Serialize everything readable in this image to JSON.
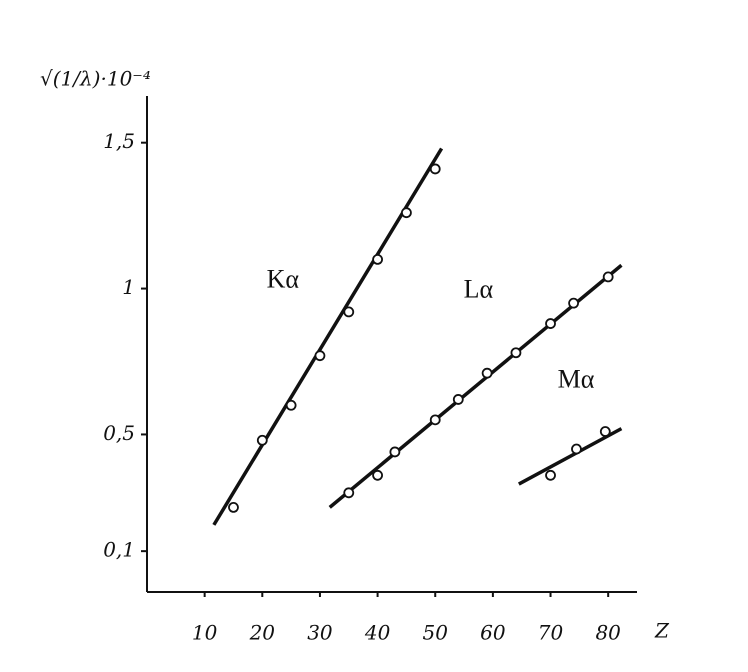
{
  "chart_data": {
    "type": "scatter",
    "xlabel": "Z",
    "ylabel": "√(1/λ)·10⁻⁴",
    "xlim": [
      0,
      85
    ],
    "ylim": [
      -0.04,
      1.66
    ],
    "xticks": [
      10,
      20,
      30,
      40,
      50,
      60,
      70,
      80
    ],
    "yticks": [
      {
        "value": 0.1,
        "label": "0,1"
      },
      {
        "value": 0.5,
        "label": "0,5"
      },
      1,
      {
        "value": 1.5,
        "label": "1,5"
      }
    ],
    "color": "#111111",
    "series": [
      {
        "name": "Kα",
        "x": [
          15,
          20,
          25,
          30,
          35,
          40,
          45,
          50
        ],
        "values": [
          0.25,
          0.48,
          0.6,
          0.77,
          0.92,
          1.1,
          1.26,
          1.41
        ],
        "fit": {
          "x": [
            11.6,
            51.1
          ],
          "values": [
            0.19,
            1.48
          ]
        }
      },
      {
        "name": "Lα",
        "x": [
          35,
          40,
          43,
          50,
          54,
          59,
          64,
          70,
          74,
          80
        ],
        "values": [
          0.3,
          0.36,
          0.44,
          0.55,
          0.62,
          0.71,
          0.78,
          0.88,
          0.95,
          1.04
        ],
        "fit": {
          "x": [
            31.7,
            82.3
          ],
          "values": [
            0.25,
            1.08
          ]
        }
      },
      {
        "name": "Mα",
        "x": [
          70,
          74.5,
          79.5
        ],
        "values": [
          0.36,
          0.45,
          0.51
        ],
        "fit": {
          "x": [
            64.5,
            82.3
          ],
          "values": [
            0.33,
            0.52
          ]
        }
      }
    ]
  }
}
